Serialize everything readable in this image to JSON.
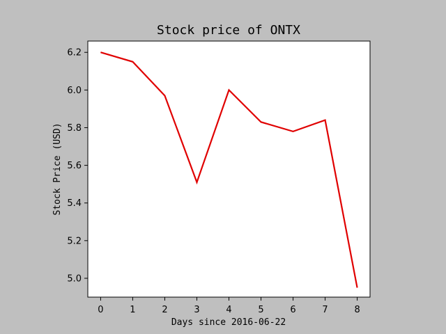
{
  "chart_data": {
    "type": "line",
    "title": "Stock price of ONTX",
    "xlabel": "Days since 2016-06-22",
    "ylabel": "Stock Price (USD)",
    "x": [
      0,
      1,
      2,
      3,
      4,
      5,
      6,
      7,
      8
    ],
    "series": [
      {
        "values": [
          6.2,
          6.15,
          5.97,
          5.51,
          6.0,
          5.83,
          5.78,
          5.84,
          4.95
        ],
        "color": "#e00000"
      }
    ],
    "xlim": [
      -0.4,
      8.4
    ],
    "ylim": [
      4.9,
      6.26
    ],
    "xticks": [
      0,
      1,
      2,
      3,
      4,
      5,
      6,
      7,
      8
    ],
    "yticks": [
      5.0,
      5.2,
      5.4,
      5.6,
      5.8,
      6.0,
      6.2
    ],
    "ytick_labels": [
      "5.0",
      "5.2",
      "5.4",
      "5.6",
      "5.8",
      "6.0",
      "6.2"
    ],
    "grid": false,
    "legend": "none",
    "colors": {
      "figure_background": "#bfbfbf",
      "plot_background": "#ffffff",
      "axes_color": "#000000"
    }
  }
}
